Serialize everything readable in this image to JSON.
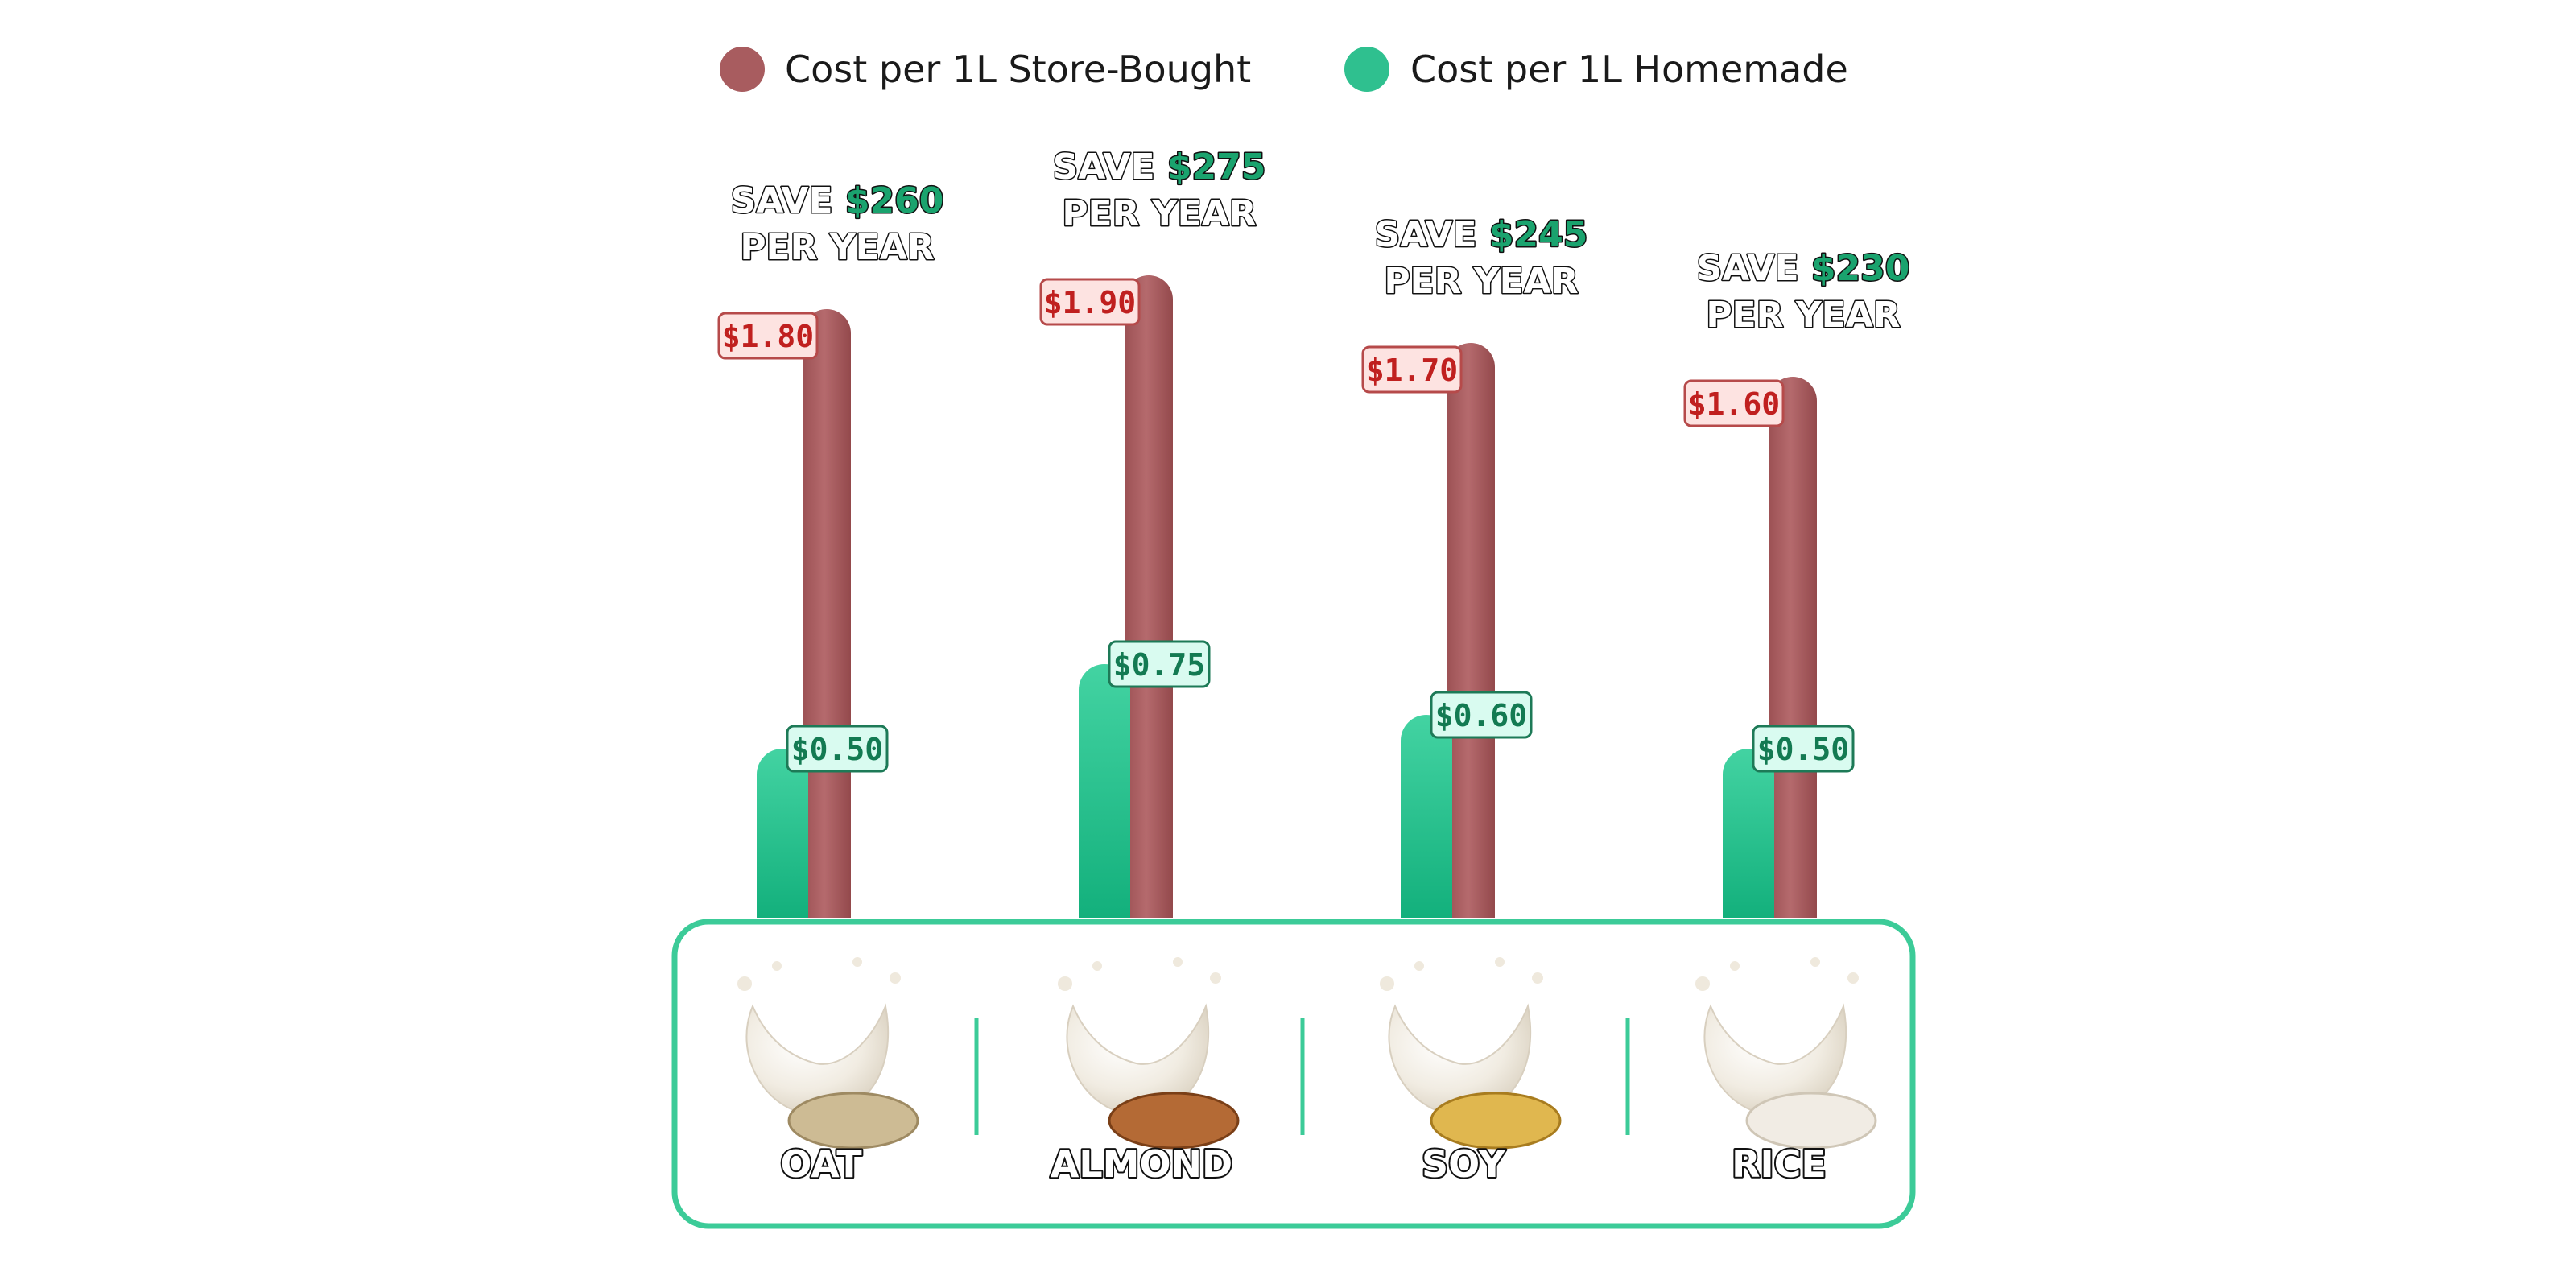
{
  "chart_data": {
    "type": "bar",
    "categories": [
      "OAT",
      "ALMOND",
      "SOY",
      "RICE"
    ],
    "series": [
      {
        "name": "Cost per 1L Store-Bought",
        "color": "#a85c5f",
        "values": [
          1.8,
          1.9,
          1.7,
          1.6
        ],
        "labels": [
          "$1.80",
          "$1.90",
          "$1.70",
          "$1.60"
        ]
      },
      {
        "name": "Cost per 1L Homemade",
        "color": "#2fc08f",
        "values": [
          0.5,
          0.75,
          0.6,
          0.5
        ],
        "labels": [
          "$0.50",
          "$0.75",
          "$0.60",
          "$0.50"
        ]
      }
    ],
    "annotations": [
      {
        "category": "OAT",
        "prefix": "SAVE",
        "amount": "$260",
        "suffix": "PER YEAR"
      },
      {
        "category": "ALMOND",
        "prefix": "SAVE",
        "amount": "$275",
        "suffix": "PER YEAR"
      },
      {
        "category": "SOY",
        "prefix": "SAVE",
        "amount": "$245",
        "suffix": "PER YEAR"
      },
      {
        "category": "RICE",
        "prefix": "SAVE",
        "amount": "$230",
        "suffix": "PER YEAR"
      }
    ],
    "category_images": [
      "oat-milk-splash-icon",
      "almond-milk-splash-icon",
      "soy-milk-splash-icon",
      "rice-milk-splash-icon"
    ],
    "legend_position": "top-center",
    "grid": false,
    "colors": {
      "store_bought": "#a85c5f",
      "homemade": "#2fc08f",
      "panel_border": "#3ccb98"
    }
  }
}
